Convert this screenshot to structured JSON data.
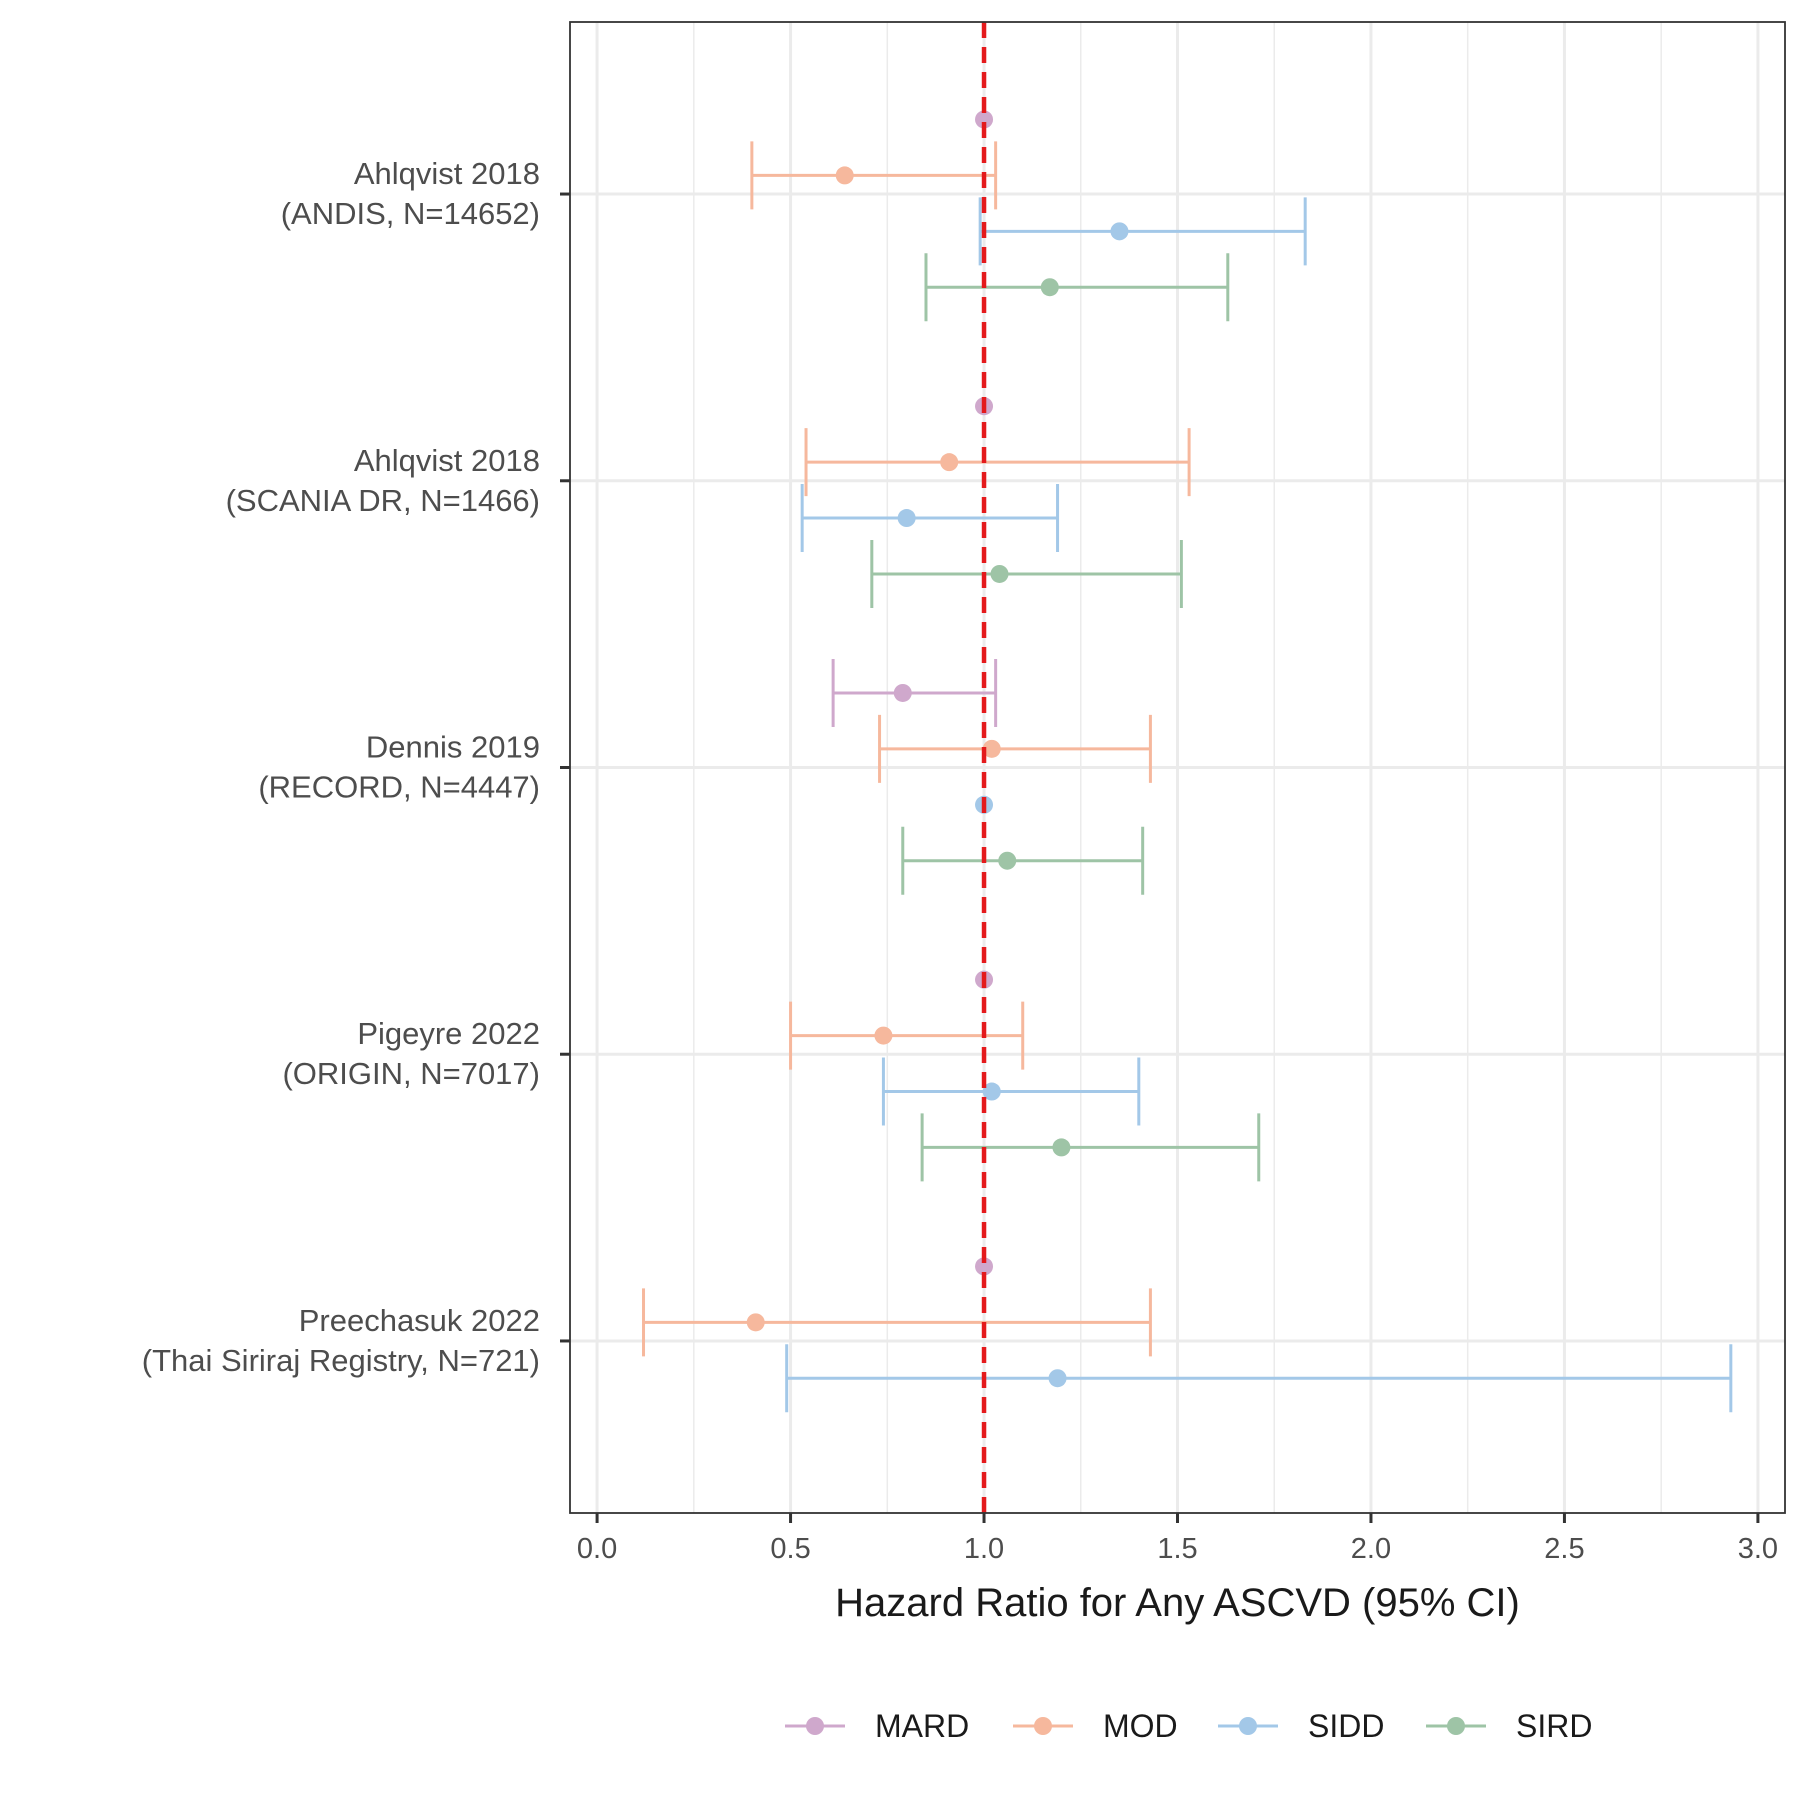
{
  "chart_data": {
    "type": "forest",
    "title": "",
    "xlabel": "Hazard Ratio for Any ASCVD (95% CI)",
    "ylabel": "",
    "xlim": [
      -0.07,
      3.07
    ],
    "x_ticks": [
      0.0,
      0.5,
      1.0,
      1.5,
      2.0,
      2.5,
      3.0
    ],
    "x_tick_labels": [
      "0.0",
      "0.5",
      "1.0",
      "1.5",
      "2.0",
      "2.5",
      "3.0"
    ],
    "reference_line": 1.0,
    "grid": true,
    "legend_position": "bottom",
    "series_order": [
      "MARD",
      "MOD",
      "SIDD",
      "SIRD"
    ],
    "colors": {
      "MARD": "#cfa8cc",
      "MOD": "#f6b89d",
      "SIDD": "#a3c8e8",
      "SIRD": "#9ec4a6",
      "reference": "#e41a1c"
    },
    "studies": [
      {
        "name": "Preechasuk 2022",
        "cohort": "(Thai Siriraj Registry, N=721)",
        "estimates": [
          {
            "group": "MARD",
            "hr": 1.0,
            "lo": null,
            "hi": null
          },
          {
            "group": "MOD",
            "hr": 0.41,
            "lo": 0.12,
            "hi": 1.43
          },
          {
            "group": "SIDD",
            "hr": 1.19,
            "lo": 0.49,
            "hi": 2.93
          }
        ]
      },
      {
        "name": "Pigeyre 2022",
        "cohort": "(ORIGIN, N=7017)",
        "estimates": [
          {
            "group": "MARD",
            "hr": 1.0,
            "lo": null,
            "hi": null
          },
          {
            "group": "MOD",
            "hr": 0.74,
            "lo": 0.5,
            "hi": 1.1
          },
          {
            "group": "SIDD",
            "hr": 1.02,
            "lo": 0.74,
            "hi": 1.4
          },
          {
            "group": "SIRD",
            "hr": 1.2,
            "lo": 0.84,
            "hi": 1.71
          }
        ]
      },
      {
        "name": "Dennis 2019",
        "cohort": "(RECORD, N=4447)",
        "estimates": [
          {
            "group": "MARD",
            "hr": 0.79,
            "lo": 0.61,
            "hi": 1.03
          },
          {
            "group": "MOD",
            "hr": 1.02,
            "lo": 0.73,
            "hi": 1.43
          },
          {
            "group": "SIDD",
            "hr": 1.0,
            "lo": null,
            "hi": null
          },
          {
            "group": "SIRD",
            "hr": 1.06,
            "lo": 0.79,
            "hi": 1.41
          }
        ]
      },
      {
        "name": "Ahlqvist 2018",
        "cohort": "(SCANIA DR, N=1466)",
        "estimates": [
          {
            "group": "MARD",
            "hr": 1.0,
            "lo": null,
            "hi": null
          },
          {
            "group": "MOD",
            "hr": 0.91,
            "lo": 0.54,
            "hi": 1.53
          },
          {
            "group": "SIDD",
            "hr": 0.8,
            "lo": 0.53,
            "hi": 1.19
          },
          {
            "group": "SIRD",
            "hr": 1.04,
            "lo": 0.71,
            "hi": 1.51
          }
        ]
      },
      {
        "name": "Ahlqvist 2018",
        "cohort": "(ANDIS, N=14652)",
        "estimates": [
          {
            "group": "MARD",
            "hr": 1.0,
            "lo": null,
            "hi": null
          },
          {
            "group": "MOD",
            "hr": 0.64,
            "lo": 0.4,
            "hi": 1.03
          },
          {
            "group": "SIDD",
            "hr": 1.35,
            "lo": 0.99,
            "hi": 1.83
          },
          {
            "group": "SIRD",
            "hr": 1.17,
            "lo": 0.85,
            "hi": 1.63
          }
        ]
      }
    ],
    "legend": [
      {
        "label": "MARD",
        "group": "MARD"
      },
      {
        "label": "MOD",
        "group": "MOD"
      },
      {
        "label": "SIDD",
        "group": "SIDD"
      },
      {
        "label": "SIRD",
        "group": "SIRD"
      }
    ]
  }
}
